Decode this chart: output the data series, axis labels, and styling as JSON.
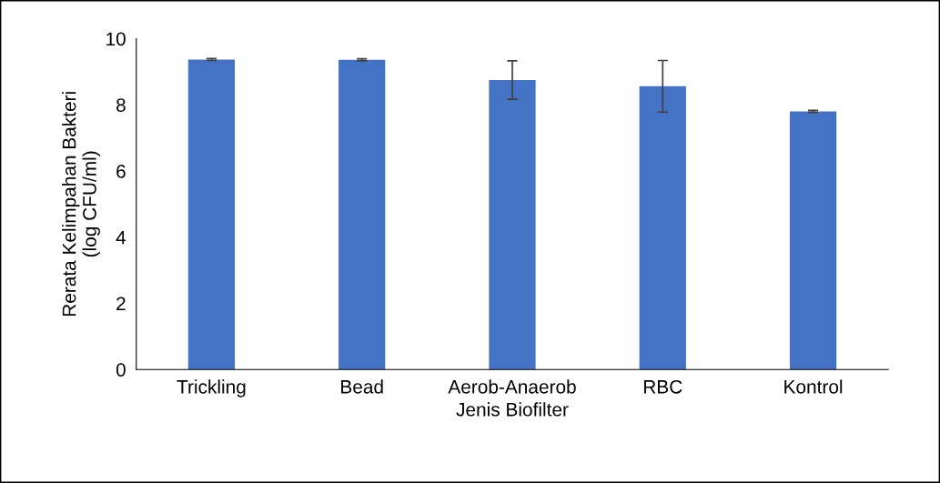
{
  "chart_data": {
    "type": "bar",
    "xlabel": "Jenis Biofilter",
    "ylabel": "Rerata Kelimpahan Bakteri\n(log CFU/ml)",
    "categories": [
      "Trickling",
      "Bead",
      "Aerob-Anaerob",
      "RBC",
      "Kontrol"
    ],
    "values": [
      9.37,
      9.36,
      8.75,
      8.56,
      7.8
    ],
    "errors": [
      0.03,
      0.03,
      0.58,
      0.78,
      0.03
    ],
    "color": "#4472c4",
    "ylim": [
      0,
      10
    ],
    "yticks": [
      0,
      2,
      4,
      6,
      8,
      10
    ],
    "grid": false,
    "legend": false
  }
}
